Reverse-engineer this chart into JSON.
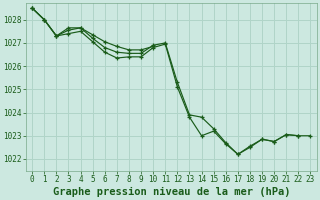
{
  "background_color": "#cce8e0",
  "grid_color": "#b0d4c8",
  "line_color": "#1a5c1a",
  "xlabel": "Graphe pression niveau de la mer (hPa)",
  "xlabel_fontsize": 7.5,
  "ylim": [
    1021.5,
    1028.7
  ],
  "xlim": [
    -0.5,
    23.5
  ],
  "yticks": [
    1022,
    1023,
    1024,
    1025,
    1026,
    1027,
    1028
  ],
  "xticks": [
    0,
    1,
    2,
    3,
    4,
    5,
    6,
    7,
    8,
    9,
    10,
    11,
    12,
    13,
    14,
    15,
    16,
    17,
    18,
    19,
    20,
    21,
    22,
    23
  ],
  "series1": [
    1028.5,
    1028.0,
    1027.3,
    1027.55,
    1027.65,
    1027.2,
    1026.8,
    1026.6,
    1026.55,
    1026.55,
    1026.9,
    1027.0,
    1025.3,
    1023.9,
    1023.8,
    1023.3,
    1022.7,
    1022.2,
    1022.5,
    1022.85,
    1022.75,
    1023.05,
    1023.0,
    1023.0
  ],
  "series2": [
    1028.5,
    1028.0,
    1027.3,
    1027.65,
    1027.65,
    1027.35,
    1027.05,
    1026.85,
    1026.7,
    1026.7,
    1026.85
  ],
  "series3": [
    1028.5,
    1028.0,
    1027.3,
    1027.4,
    1027.5,
    1027.05,
    1026.6,
    1026.35,
    1026.4,
    1026.4,
    1026.8,
    1026.95,
    1025.1,
    1023.8,
    1023.0,
    1023.2,
    1022.65,
    1022.2,
    1022.55,
    1022.85,
    1022.75,
    1023.05,
    1023.0
  ]
}
